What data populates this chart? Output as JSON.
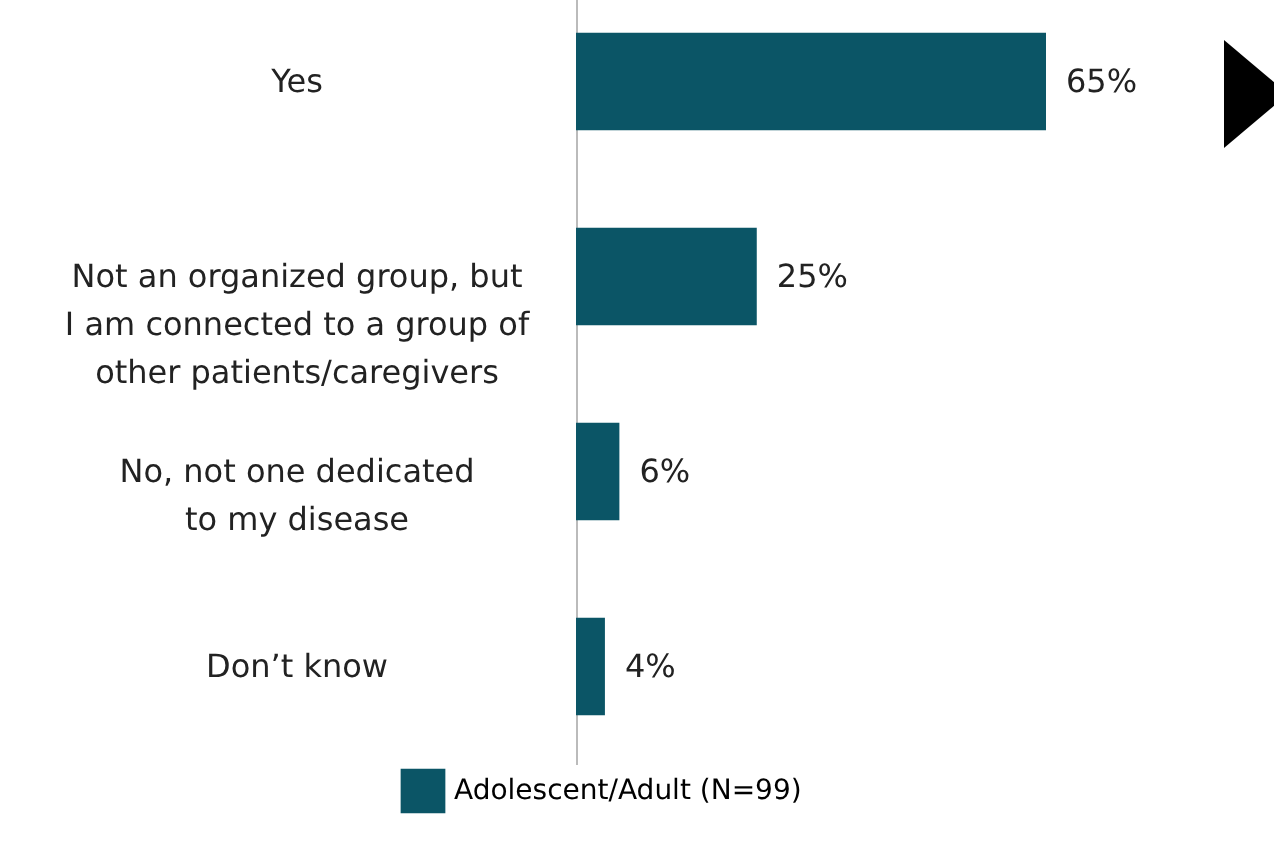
{
  "chart_data": {
    "type": "bar",
    "orientation": "horizontal",
    "categories": [
      "Yes",
      "Not an organized group, but I am connected to a group of other patients/caregivers",
      "No, not one dedicated to my disease",
      "Don’t know"
    ],
    "series": [
      {
        "name": "Adolescent/Adult (N=99)",
        "color": "#0b5566",
        "values": [
          65,
          25,
          6,
          4
        ],
        "value_labels": [
          "65%",
          "25%",
          "6%",
          "4%"
        ]
      }
    ],
    "legend": "bottom",
    "grid": false
  }
}
